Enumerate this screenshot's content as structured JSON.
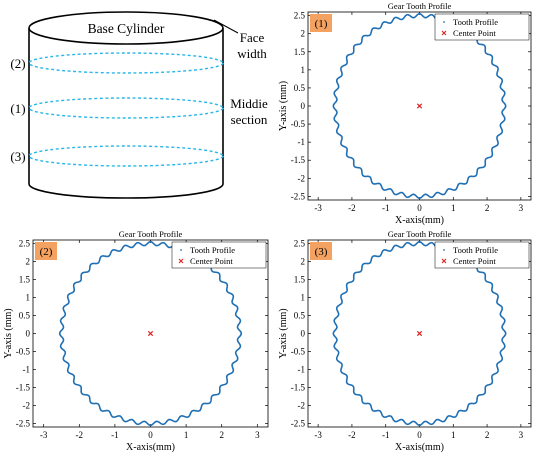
{
  "diagram": {
    "title": "Base Cylinder",
    "face_width_line1": "Face",
    "face_width_line2": "width",
    "middle_line1": "Middie",
    "middle_line2": "section",
    "section_labels": [
      "(2)",
      "(1)",
      "(3)"
    ]
  },
  "colors": {
    "profile": "#1f6fb4",
    "center": "#e02020",
    "badge": "#f4a261",
    "dashed": "#29b6e8"
  },
  "chart_data": [
    {
      "type": "line",
      "badge": "(1)",
      "title": "Gear Tooth Profile",
      "xlabel": "X-axis(mm)",
      "ylabel": "Y-axis (mm)",
      "xlim": [
        -3.3,
        3.3
      ],
      "ylim": [
        -2.6,
        2.6
      ],
      "xticks": [
        -3,
        -2,
        -1,
        0,
        1,
        2,
        3
      ],
      "yticks": [
        -2.5,
        -2,
        -1.5,
        -1,
        -0.5,
        0,
        0.5,
        1,
        1.5,
        2,
        2.5
      ],
      "legend": [
        "Tooth Profile",
        "Center Point"
      ],
      "legend_position": "top-right",
      "series": [
        {
          "name": "Tooth Profile",
          "kind": "gear",
          "teeth": 44,
          "mean_radius": 2.5,
          "tooth_amplitude": 0.05
        },
        {
          "name": "Center Point",
          "x": [
            0
          ],
          "y": [
            0
          ]
        }
      ]
    },
    {
      "type": "line",
      "badge": "(2)",
      "title": "Gear Tooth Profile",
      "xlabel": "X-axis(mm)",
      "ylabel": "Y-axis (mm)",
      "xlim": [
        -3.3,
        3.3
      ],
      "ylim": [
        -2.6,
        2.6
      ],
      "xticks": [
        -3,
        -2,
        -1,
        0,
        1,
        2,
        3
      ],
      "yticks": [
        -2.5,
        -2,
        -1.5,
        -1,
        -0.5,
        0,
        0.5,
        1,
        1.5,
        2,
        2.5
      ],
      "legend": [
        "Tooth Profile",
        "Center Point"
      ],
      "legend_position": "top-right",
      "series": [
        {
          "name": "Tooth Profile",
          "kind": "gear",
          "teeth": 44,
          "mean_radius": 2.5,
          "tooth_amplitude": 0.05
        },
        {
          "name": "Center Point",
          "x": [
            0
          ],
          "y": [
            0
          ]
        }
      ]
    },
    {
      "type": "line",
      "badge": "(3)",
      "title": "Gear Tooth Profile",
      "xlabel": "X-axis(mm)",
      "ylabel": "Y-axis (mm)",
      "xlim": [
        -3.3,
        3.3
      ],
      "ylim": [
        -2.6,
        2.6
      ],
      "xticks": [
        -3,
        -2,
        -1,
        0,
        1,
        2,
        3
      ],
      "yticks": [
        -2.5,
        -2,
        -1.5,
        -1,
        -0.5,
        0,
        0.5,
        1,
        1.5,
        2,
        2.5
      ],
      "legend": [
        "Tooth Profile",
        "Center Point"
      ],
      "legend_position": "top-right",
      "series": [
        {
          "name": "Tooth Profile",
          "kind": "gear",
          "teeth": 44,
          "mean_radius": 2.5,
          "tooth_amplitude": 0.05
        },
        {
          "name": "Center Point",
          "x": [
            0
          ],
          "y": [
            0
          ]
        }
      ]
    }
  ]
}
